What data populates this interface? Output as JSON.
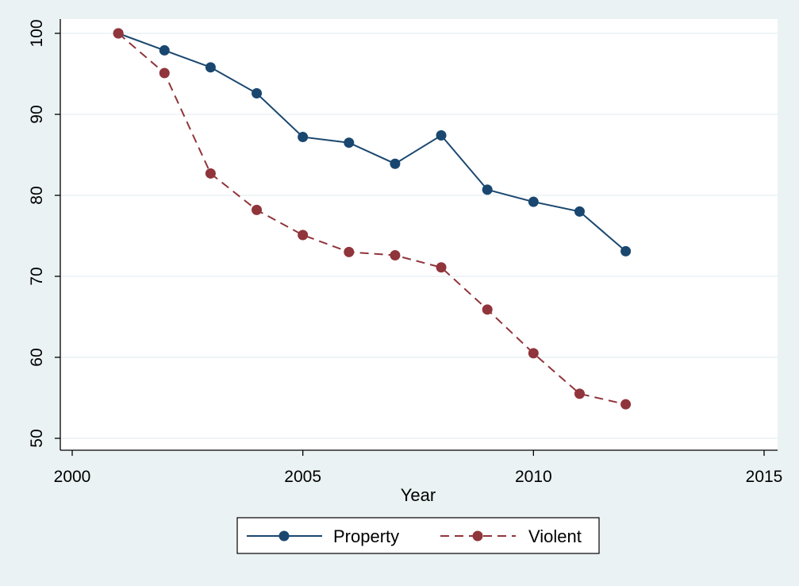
{
  "chart_data": {
    "type": "line",
    "title": "",
    "xlabel": "Year",
    "ylabel": "",
    "x": [
      2001,
      2002,
      2003,
      2004,
      2005,
      2006,
      2007,
      2008,
      2009,
      2010,
      2011,
      2012
    ],
    "xlim": [
      2000,
      2015
    ],
    "ylim": [
      50,
      100
    ],
    "xticks": [
      2000,
      2005,
      2010,
      2015
    ],
    "yticks": [
      50,
      60,
      70,
      80,
      90,
      100
    ],
    "grid": true,
    "legend_position": "bottom",
    "series": [
      {
        "name": "Property",
        "values": [
          100,
          97.9,
          95.8,
          92.6,
          87.2,
          86.5,
          83.9,
          87.4,
          80.7,
          79.2,
          78.0,
          73.1
        ],
        "color": "#1a476f",
        "line_style": "solid",
        "marker": "circle"
      },
      {
        "name": "Violent",
        "values": [
          100,
          95.1,
          82.7,
          78.2,
          75.1,
          73.0,
          72.6,
          71.1,
          65.9,
          60.5,
          55.5,
          54.2
        ],
        "color": "#90353b",
        "line_style": "dashed",
        "marker": "circle"
      }
    ]
  },
  "colors": {
    "background": "#eaf2f3",
    "plot_background": "#ffffff",
    "grid": "#eaf2f3",
    "axis": "#000000"
  }
}
